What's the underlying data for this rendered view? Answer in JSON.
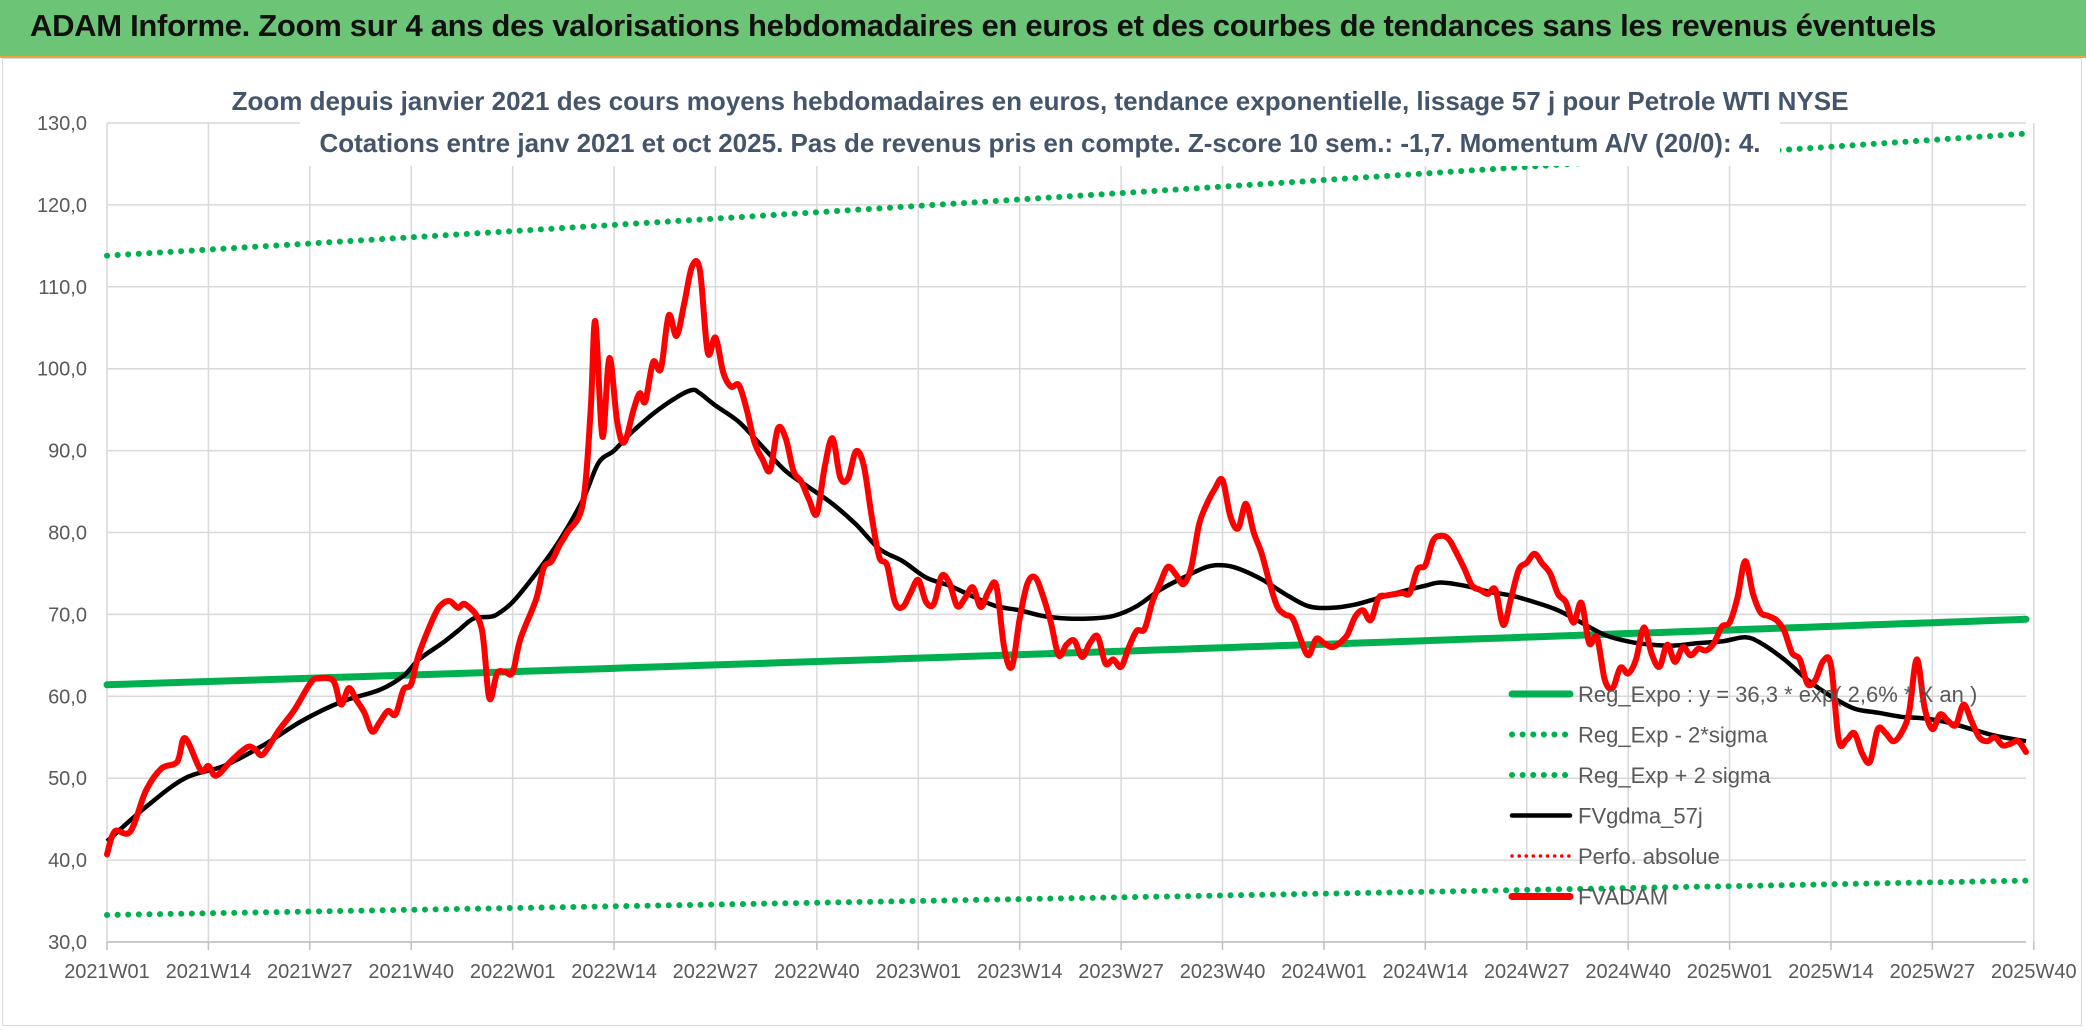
{
  "page": {
    "banner_title": "ADAM Informe. Zoom sur 4 ans des valorisations hebdomadaires en euros et des courbes de tendances sans les revenus éventuels"
  },
  "chart_data": {
    "type": "line",
    "title": "Zoom depuis janvier 2021 des cours moyens hebdomadaires en euros, tendance exponentielle, lissage 57 j pour Petrole WTI NYSE",
    "subtitle": "Cotations entre janv 2021 et oct 2025. Pas de revenus pris en compte. Z-score 10 sem.: -1,7. Momentum A/V (20/0): 4.",
    "xlabel": "",
    "ylabel": "",
    "ylim": [
      30,
      130
    ],
    "y_ticks": [
      "30,0",
      "40,0",
      "50,0",
      "60,0",
      "70,0",
      "80,0",
      "90,0",
      "100,0",
      "110,0",
      "120,0",
      "130,0"
    ],
    "x_tick_labels": [
      "2021W01",
      "2021W14",
      "2021W27",
      "2021W40",
      "2022W01",
      "2022W14",
      "2022W27",
      "2022W40",
      "2023W01",
      "2023W14",
      "2023W27",
      "2023W40",
      "2024W01",
      "2024W14",
      "2024W27",
      "2024W40",
      "2025W01",
      "2025W14",
      "2025W27",
      "2025W40"
    ],
    "grid": true,
    "legend_position": "bottom-right",
    "colors": {
      "reg_expo": "#00b050",
      "reg_bands": "#00b050",
      "fvgdma": "#000000",
      "perfo": "#ff0000",
      "fvadam": "#ff0000",
      "grid": "#d9d9d9"
    },
    "legend": [
      {
        "label": "Reg_Expo : y = 36,3 * exp( 2,6% * X  an )",
        "key": "reg_expo"
      },
      {
        "label": "Reg_Exp - 2*sigma",
        "key": "reg_lower"
      },
      {
        "label": "Reg_Exp + 2 sigma",
        "key": "reg_upper"
      },
      {
        "label": "FVgdma_57j",
        "key": "fvgdma"
      },
      {
        "label": "Perfo. absolue",
        "key": "perfo"
      },
      {
        "label": "FVADAM",
        "key": "fvadam"
      }
    ],
    "reg_expo": {
      "start": 61.4,
      "end": 69.4
    },
    "reg_lower": {
      "start": 33.3,
      "end": 37.5
    },
    "reg_upper": {
      "start": 113.8,
      "end": 128.7
    },
    "fvadam_anchors": [
      [
        0,
        40.7
      ],
      [
        1,
        43.5
      ],
      [
        3,
        43.5
      ],
      [
        5,
        48.5
      ],
      [
        7,
        51.2
      ],
      [
        9,
        52.0
      ],
      [
        10,
        54.9
      ],
      [
        12,
        51.0
      ],
      [
        13,
        51.5
      ],
      [
        14,
        50.3
      ],
      [
        16,
        52.2
      ],
      [
        18,
        53.8
      ],
      [
        19,
        53.5
      ],
      [
        20,
        52.9
      ],
      [
        22,
        55.8
      ],
      [
        24,
        58.3
      ],
      [
        26,
        61.5
      ],
      [
        27,
        62.2
      ],
      [
        29,
        61.9
      ],
      [
        30,
        59.0
      ],
      [
        31,
        61.0
      ],
      [
        32,
        59.5
      ],
      [
        33,
        58.0
      ],
      [
        34,
        55.7
      ],
      [
        35,
        56.9
      ],
      [
        36,
        58.2
      ],
      [
        37,
        57.8
      ],
      [
        38,
        60.8
      ],
      [
        39,
        61.5
      ],
      [
        40,
        65.2
      ],
      [
        42,
        69.9
      ],
      [
        43,
        71.3
      ],
      [
        44,
        71.6
      ],
      [
        45,
        70.8
      ],
      [
        46,
        71.2
      ],
      [
        48,
        68.4
      ],
      [
        49,
        59.8
      ],
      [
        50,
        62.8
      ],
      [
        51,
        63.0
      ],
      [
        52,
        62.9
      ],
      [
        53,
        67.0
      ],
      [
        55,
        71.8
      ],
      [
        56,
        75.7
      ],
      [
        57,
        76.5
      ],
      [
        58,
        78.4
      ],
      [
        59,
        80.0
      ],
      [
        61,
        83.5
      ],
      [
        62,
        95.0
      ],
      [
        62.6,
        105.8
      ],
      [
        63.5,
        91.7
      ],
      [
        64.4,
        101.3
      ],
      [
        65.4,
        93.5
      ],
      [
        66.3,
        91.0
      ],
      [
        67.5,
        95.0
      ],
      [
        68.3,
        97.0
      ],
      [
        69,
        96.0
      ],
      [
        70,
        100.8
      ],
      [
        71,
        100.0
      ],
      [
        72,
        106.5
      ],
      [
        73,
        104.0
      ],
      [
        74,
        108.0
      ],
      [
        75,
        112.5
      ],
      [
        76,
        112.0
      ],
      [
        77,
        102.0
      ],
      [
        78,
        103.8
      ],
      [
        79,
        99.5
      ],
      [
        80,
        97.8
      ],
      [
        81,
        98.0
      ],
      [
        82,
        95.0
      ],
      [
        83,
        91.0
      ],
      [
        84,
        89.0
      ],
      [
        85,
        87.6
      ],
      [
        86,
        92.7
      ],
      [
        87,
        91.5
      ],
      [
        88,
        87.5
      ],
      [
        89,
        86.2
      ],
      [
        90,
        84.0
      ],
      [
        91,
        82.3
      ],
      [
        92,
        88.0
      ],
      [
        93,
        91.5
      ],
      [
        94,
        86.7
      ],
      [
        95,
        86.6
      ],
      [
        96,
        89.9
      ],
      [
        97,
        88.2
      ],
      [
        98,
        82.1
      ],
      [
        99,
        77.0
      ],
      [
        100,
        76.0
      ],
      [
        101,
        71.5
      ],
      [
        102,
        70.9
      ],
      [
        103,
        72.6
      ],
      [
        104,
        74.2
      ],
      [
        105,
        71.5
      ],
      [
        106,
        71.3
      ],
      [
        107,
        74.7
      ],
      [
        108,
        73.8
      ],
      [
        109,
        71.0
      ],
      [
        110,
        72.0
      ],
      [
        111,
        73.3
      ],
      [
        112,
        70.9
      ],
      [
        113,
        72.8
      ],
      [
        114,
        73.5
      ],
      [
        115,
        66.0
      ],
      [
        116,
        63.6
      ],
      [
        117,
        69.5
      ],
      [
        118,
        73.8
      ],
      [
        119,
        74.5
      ],
      [
        120,
        72.2
      ],
      [
        121,
        69.0
      ],
      [
        122,
        65.0
      ],
      [
        123,
        66.3
      ],
      [
        124,
        66.8
      ],
      [
        125,
        64.8
      ],
      [
        126,
        66.5
      ],
      [
        127,
        67.3
      ],
      [
        128,
        64.0
      ],
      [
        129,
        64.5
      ],
      [
        130,
        63.6
      ],
      [
        131,
        66.0
      ],
      [
        132,
        68.0
      ],
      [
        133,
        68.2
      ],
      [
        134,
        71.5
      ],
      [
        135,
        73.8
      ],
      [
        136,
        75.8
      ],
      [
        137,
        74.9
      ],
      [
        138,
        73.7
      ],
      [
        139,
        75.8
      ],
      [
        140,
        81.0
      ],
      [
        141,
        83.5
      ],
      [
        142,
        85.3
      ],
      [
        143,
        86.4
      ],
      [
        144,
        82.0
      ],
      [
        145,
        80.5
      ],
      [
        146,
        83.5
      ],
      [
        147,
        80.0
      ],
      [
        148,
        77.5
      ],
      [
        149,
        74.0
      ],
      [
        150,
        71.0
      ],
      [
        151,
        70.0
      ],
      [
        152,
        69.5
      ],
      [
        153,
        67.0
      ],
      [
        154,
        65.0
      ],
      [
        155,
        67.0
      ],
      [
        156,
        66.5
      ],
      [
        157,
        66.0
      ],
      [
        158,
        66.5
      ],
      [
        159,
        67.5
      ],
      [
        160,
        69.7
      ],
      [
        161,
        70.5
      ],
      [
        162,
        69.3
      ],
      [
        163,
        72.0
      ],
      [
        164,
        72.3
      ],
      [
        166,
        72.6
      ],
      [
        167,
        72.6
      ],
      [
        168,
        75.5
      ],
      [
        169,
        76.0
      ],
      [
        170,
        79.0
      ],
      [
        171,
        79.6
      ],
      [
        172,
        79.2
      ],
      [
        173,
        77.5
      ],
      [
        174,
        75.6
      ],
      [
        175,
        73.5
      ],
      [
        176,
        73.0
      ],
      [
        177,
        72.5
      ],
      [
        178,
        73.0
      ],
      [
        179,
        68.7
      ],
      [
        180,
        72.0
      ],
      [
        181,
        75.5
      ],
      [
        182,
        76.3
      ],
      [
        183,
        77.4
      ],
      [
        184,
        76.2
      ],
      [
        185,
        75.0
      ],
      [
        186,
        72.5
      ],
      [
        187,
        71.5
      ],
      [
        188,
        69.0
      ],
      [
        189,
        71.4
      ],
      [
        190,
        66.5
      ],
      [
        191,
        67.2
      ],
      [
        192,
        62.0
      ],
      [
        193,
        61.0
      ],
      [
        194,
        63.5
      ],
      [
        195,
        62.8
      ],
      [
        196,
        64.5
      ],
      [
        197,
        68.4
      ],
      [
        198,
        65.2
      ],
      [
        199,
        63.6
      ],
      [
        200,
        66.3
      ],
      [
        201,
        64.2
      ],
      [
        202,
        66.0
      ],
      [
        203,
        65.0
      ],
      [
        204,
        65.8
      ],
      [
        205,
        65.6
      ],
      [
        206,
        66.5
      ],
      [
        207,
        68.5
      ],
      [
        208,
        69.0
      ],
      [
        209,
        72.0
      ],
      [
        210,
        76.5
      ],
      [
        211,
        72.5
      ],
      [
        212,
        70.2
      ],
      [
        213,
        69.8
      ],
      [
        214,
        69.3
      ],
      [
        215,
        68.0
      ],
      [
        216,
        65.3
      ],
      [
        217,
        64.5
      ],
      [
        218,
        61.5
      ],
      [
        219,
        62.0
      ],
      [
        220,
        64.3
      ],
      [
        221,
        63.8
      ],
      [
        222,
        54.6
      ],
      [
        223,
        54.7
      ],
      [
        224,
        55.5
      ],
      [
        225,
        53.0
      ],
      [
        226,
        52.0
      ],
      [
        227,
        56.0
      ],
      [
        228,
        55.5
      ],
      [
        229,
        54.5
      ],
      [
        230,
        55.5
      ],
      [
        231,
        58.0
      ],
      [
        232,
        64.5
      ],
      [
        233,
        58.6
      ],
      [
        234,
        56.0
      ],
      [
        235,
        57.8
      ],
      [
        236,
        57.0
      ],
      [
        237,
        56.5
      ],
      [
        238,
        59.0
      ],
      [
        239,
        57.0
      ],
      [
        240,
        55.0
      ],
      [
        241,
        54.5
      ],
      [
        242,
        55.0
      ],
      [
        243,
        54.0
      ],
      [
        244,
        54.2
      ],
      [
        245,
        54.5
      ],
      [
        246,
        53.2
      ]
    ],
    "fvgdma_anchors": [
      [
        0,
        42.3
      ],
      [
        5,
        46.5
      ],
      [
        10,
        50.0
      ],
      [
        15,
        51.5
      ],
      [
        20,
        54.0
      ],
      [
        25,
        57.0
      ],
      [
        30,
        59.3
      ],
      [
        35,
        60.8
      ],
      [
        38,
        62.5
      ],
      [
        40,
        64.5
      ],
      [
        43,
        66.5
      ],
      [
        45,
        68.0
      ],
      [
        47,
        69.5
      ],
      [
        49,
        69.7
      ],
      [
        50,
        70.0
      ],
      [
        52,
        71.5
      ],
      [
        55,
        75.0
      ],
      [
        58,
        79.0
      ],
      [
        61,
        84.0
      ],
      [
        63,
        88.5
      ],
      [
        65,
        90.0
      ],
      [
        67,
        92.0
      ],
      [
        70,
        94.5
      ],
      [
        73,
        96.5
      ],
      [
        75,
        97.4
      ],
      [
        76,
        97.0
      ],
      [
        78,
        95.5
      ],
      [
        81,
        93.5
      ],
      [
        84,
        90.5
      ],
      [
        87,
        87.5
      ],
      [
        90,
        85.5
      ],
      [
        93,
        83.5
      ],
      [
        96,
        81.0
      ],
      [
        99,
        78.0
      ],
      [
        102,
        76.5
      ],
      [
        105,
        74.5
      ],
      [
        108,
        73.5
      ],
      [
        111,
        72.2
      ],
      [
        114,
        71.0
      ],
      [
        117,
        70.5
      ],
      [
        120,
        69.8
      ],
      [
        123,
        69.5
      ],
      [
        126,
        69.5
      ],
      [
        129,
        69.8
      ],
      [
        132,
        71.0
      ],
      [
        135,
        73.0
      ],
      [
        138,
        74.5
      ],
      [
        141,
        75.8
      ],
      [
        143,
        76.0
      ],
      [
        145,
        75.6
      ],
      [
        148,
        74.3
      ],
      [
        151,
        72.5
      ],
      [
        154,
        71.0
      ],
      [
        157,
        70.8
      ],
      [
        160,
        71.2
      ],
      [
        163,
        72.0
      ],
      [
        166,
        72.8
      ],
      [
        169,
        73.5
      ],
      [
        171,
        73.9
      ],
      [
        174,
        73.5
      ],
      [
        177,
        72.8
      ],
      [
        180,
        72.3
      ],
      [
        183,
        71.5
      ],
      [
        186,
        70.5
      ],
      [
        189,
        69.0
      ],
      [
        192,
        67.5
      ],
      [
        195,
        66.7
      ],
      [
        198,
        66.3
      ],
      [
        201,
        66.2
      ],
      [
        204,
        66.5
      ],
      [
        207,
        66.7
      ],
      [
        210,
        67.2
      ],
      [
        212,
        66.5
      ],
      [
        215,
        64.5
      ],
      [
        218,
        62.0
      ],
      [
        221,
        60.0
      ],
      [
        224,
        58.5
      ],
      [
        227,
        58.0
      ],
      [
        230,
        57.5
      ],
      [
        233,
        57.3
      ],
      [
        236,
        56.8
      ],
      [
        239,
        56.0
      ],
      [
        242,
        55.2
      ],
      [
        246,
        54.5
      ]
    ]
  }
}
